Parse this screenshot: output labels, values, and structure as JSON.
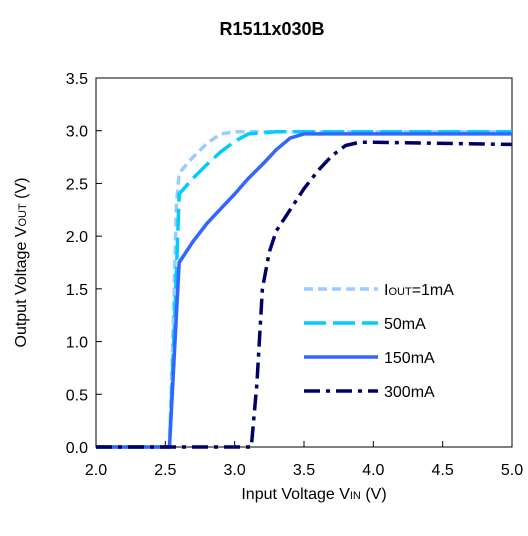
{
  "chart_data": {
    "type": "line",
    "title": "R1511x030B",
    "xlabel": {
      "main": "Input Voltage V",
      "sub": "IN",
      "unit": " (V)"
    },
    "ylabel": {
      "main": "Output Voltage V",
      "sub": "OUT",
      "unit": " (V)"
    },
    "xlim": [
      2.0,
      5.0
    ],
    "ylim": [
      0.0,
      3.5
    ],
    "xticks": [
      "2.0",
      "2.5",
      "3.0",
      "3.5",
      "4.0",
      "4.5",
      "5.0"
    ],
    "yticks": [
      "0.0",
      "0.5",
      "1.0",
      "1.5",
      "2.0",
      "2.5",
      "3.0",
      "3.5"
    ],
    "grid": false,
    "legend_position": "lower-right",
    "series": [
      {
        "name": "1mA",
        "legend_prefix": "I",
        "legend_sub": "OUT",
        "legend_suffix": "=1mA",
        "color": "#99CCFF",
        "dash": "short-dash",
        "points": [
          [
            2.0,
            0.0
          ],
          [
            2.53,
            0.0
          ],
          [
            2.56,
            1.3
          ],
          [
            2.58,
            2.3
          ],
          [
            2.6,
            2.6
          ],
          [
            2.7,
            2.75
          ],
          [
            2.8,
            2.88
          ],
          [
            2.9,
            2.97
          ],
          [
            3.0,
            2.99
          ],
          [
            3.5,
            2.99
          ],
          [
            5.0,
            2.99
          ]
        ]
      },
      {
        "name": "50mA",
        "legend_prefix": "",
        "legend_sub": "",
        "legend_suffix": "50mA",
        "color": "#00CCFF",
        "dash": "long-dash",
        "points": [
          [
            2.0,
            0.0
          ],
          [
            2.53,
            0.0
          ],
          [
            2.57,
            1.3
          ],
          [
            2.6,
            2.4
          ],
          [
            2.7,
            2.55
          ],
          [
            2.8,
            2.68
          ],
          [
            2.9,
            2.8
          ],
          [
            3.0,
            2.9
          ],
          [
            3.1,
            2.97
          ],
          [
            3.3,
            2.99
          ],
          [
            5.0,
            2.99
          ]
        ]
      },
      {
        "name": "150mA",
        "legend_prefix": "",
        "legend_sub": "",
        "legend_suffix": "150mA",
        "color": "#3366FF",
        "dash": "solid",
        "points": [
          [
            2.0,
            0.0
          ],
          [
            2.53,
            0.0
          ],
          [
            2.57,
            1.0
          ],
          [
            2.6,
            1.75
          ],
          [
            2.7,
            1.95
          ],
          [
            2.8,
            2.12
          ],
          [
            2.9,
            2.26
          ],
          [
            3.0,
            2.4
          ],
          [
            3.1,
            2.55
          ],
          [
            3.2,
            2.68
          ],
          [
            3.3,
            2.82
          ],
          [
            3.4,
            2.93
          ],
          [
            3.5,
            2.97
          ],
          [
            4.0,
            2.97
          ],
          [
            5.0,
            2.97
          ]
        ]
      },
      {
        "name": "300mA",
        "legend_prefix": "",
        "legend_sub": "",
        "legend_suffix": "300mA",
        "color": "#000066",
        "dash": "dash-dot",
        "points": [
          [
            2.0,
            0.0
          ],
          [
            3.12,
            0.0
          ],
          [
            3.16,
            0.6
          ],
          [
            3.2,
            1.5
          ],
          [
            3.25,
            1.85
          ],
          [
            3.3,
            2.05
          ],
          [
            3.4,
            2.25
          ],
          [
            3.5,
            2.45
          ],
          [
            3.6,
            2.62
          ],
          [
            3.7,
            2.76
          ],
          [
            3.8,
            2.86
          ],
          [
            3.9,
            2.89
          ],
          [
            4.0,
            2.89
          ],
          [
            5.0,
            2.87
          ]
        ]
      }
    ]
  }
}
